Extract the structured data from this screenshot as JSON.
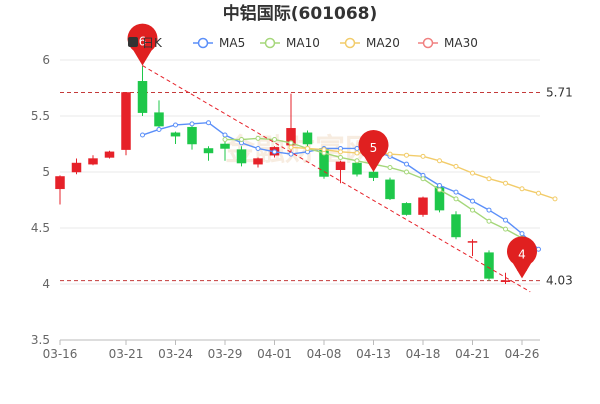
{
  "chart_data": {
    "type": "candlestick",
    "title": "中铝国际(601068)",
    "watermark": "金融财富网",
    "colors": {
      "up": "#e62129",
      "down": "#1ec74a",
      "ma5": "#5b8ff9",
      "ma10": "#a5d77a",
      "ma20": "#f2cc6a",
      "ma30": "#f08080",
      "trend": "#e62129",
      "pin": "#e02020"
    },
    "ylim": [
      3.5,
      6
    ],
    "yticks": [
      "3.5",
      "4",
      "4.5",
      "5",
      "5.5",
      "6"
    ],
    "xticks": [
      "03-16",
      "03-21",
      "03-24",
      "03-29",
      "04-01",
      "04-08",
      "04-13",
      "04-18",
      "04-21",
      "04-26"
    ],
    "xtick_index": [
      0,
      4,
      7,
      10,
      13,
      16,
      19,
      22,
      25,
      28
    ],
    "legend": [
      {
        "key": "k",
        "label": "日K"
      },
      {
        "key": "ma5",
        "label": "MA5"
      },
      {
        "key": "ma10",
        "label": "MA10"
      },
      {
        "key": "ma20",
        "label": "MA20"
      },
      {
        "key": "ma30",
        "label": "MA30"
      }
    ],
    "reference_lines": [
      {
        "value": 5.71,
        "label": "5.71"
      },
      {
        "value": 4.03,
        "label": "4.03"
      }
    ],
    "trend_line": {
      "from": [
        5,
        5.95
      ],
      "to": [
        28.5,
        3.93
      ]
    },
    "pins": [
      {
        "index": 5,
        "value": 5.95,
        "label": "6"
      },
      {
        "index": 19,
        "value": 5.0,
        "label": "5"
      },
      {
        "index": 28,
        "value": 4.05,
        "label": "4"
      }
    ],
    "candles": [
      {
        "o": 4.85,
        "c": 4.96,
        "h": 4.97,
        "l": 4.71
      },
      {
        "o": 5.0,
        "c": 5.08,
        "h": 5.12,
        "l": 4.98
      },
      {
        "o": 5.07,
        "c": 5.12,
        "h": 5.15,
        "l": 5.06
      },
      {
        "o": 5.13,
        "c": 5.18,
        "h": 5.19,
        "l": 5.12
      },
      {
        "o": 5.2,
        "c": 5.71,
        "h": 5.71,
        "l": 5.15
      },
      {
        "o": 5.81,
        "c": 5.53,
        "h": 5.95,
        "l": 5.5
      },
      {
        "o": 5.53,
        "c": 5.41,
        "h": 5.64,
        "l": 5.38
      },
      {
        "o": 5.35,
        "c": 5.32,
        "h": 5.36,
        "l": 5.25
      },
      {
        "o": 5.4,
        "c": 5.25,
        "h": 5.42,
        "l": 5.2
      },
      {
        "o": 5.21,
        "c": 5.17,
        "h": 5.23,
        "l": 5.1
      },
      {
        "o": 5.25,
        "c": 5.21,
        "h": 5.27,
        "l": 5.1
      },
      {
        "o": 5.2,
        "c": 5.08,
        "h": 5.23,
        "l": 5.05
      },
      {
        "o": 5.07,
        "c": 5.12,
        "h": 5.13,
        "l": 5.04
      },
      {
        "o": 5.15,
        "c": 5.22,
        "h": 5.23,
        "l": 5.13
      },
      {
        "o": 5.24,
        "c": 5.39,
        "h": 5.7,
        "l": 5.18
      },
      {
        "o": 5.35,
        "c": 5.25,
        "h": 5.37,
        "l": 5.23
      },
      {
        "o": 5.21,
        "c": 4.96,
        "h": 5.23,
        "l": 4.94
      },
      {
        "o": 5.02,
        "c": 5.09,
        "h": 5.1,
        "l": 4.9
      },
      {
        "o": 5.08,
        "c": 4.98,
        "h": 5.1,
        "l": 4.96
      },
      {
        "o": 5.0,
        "c": 4.95,
        "h": 5.02,
        "l": 4.92
      },
      {
        "o": 4.93,
        "c": 4.76,
        "h": 4.95,
        "l": 4.75
      },
      {
        "o": 4.72,
        "c": 4.62,
        "h": 4.73,
        "l": 4.61
      },
      {
        "o": 4.62,
        "c": 4.77,
        "h": 4.78,
        "l": 4.6
      },
      {
        "o": 4.87,
        "c": 4.66,
        "h": 4.9,
        "l": 4.64
      },
      {
        "o": 4.62,
        "c": 4.42,
        "h": 4.65,
        "l": 4.4
      },
      {
        "o": 4.38,
        "c": 4.38,
        "h": 4.4,
        "l": 4.25
      },
      {
        "o": 4.28,
        "c": 4.05,
        "h": 4.3,
        "l": 4.03
      },
      {
        "o": 4.02,
        "c": 4.03,
        "h": 4.1,
        "l": 4.0
      },
      {
        "o": 4.12,
        "c": 4.15,
        "h": 4.18,
        "l": 4.1
      }
    ],
    "series": [
      {
        "name": "MA5",
        "key": "ma5",
        "start": 5,
        "values": [
          5.33,
          5.38,
          5.42,
          5.43,
          5.44,
          5.33,
          5.26,
          5.21,
          5.18,
          5.16,
          5.18,
          5.21,
          5.21,
          5.21,
          5.19,
          5.14,
          5.07,
          4.97,
          4.88,
          4.82,
          4.74,
          4.66,
          4.57,
          4.45,
          4.31
        ]
      },
      {
        "name": "MA10",
        "key": "ma10",
        "start": 10,
        "values": [
          5.29,
          5.29,
          5.3,
          5.29,
          5.26,
          5.21,
          5.17,
          5.13,
          5.1,
          5.07,
          5.04,
          5.0,
          4.94,
          4.84,
          4.76,
          4.66,
          4.56,
          4.49,
          4.41
        ]
      },
      {
        "name": "MA20",
        "key": "ma20",
        "start": 14,
        "values": [
          5.22,
          5.21,
          5.2,
          5.18,
          5.17,
          5.17,
          5.16,
          5.15,
          5.14,
          5.1,
          5.05,
          4.99,
          4.94,
          4.9,
          4.85,
          4.81,
          4.76
        ]
      }
    ]
  }
}
